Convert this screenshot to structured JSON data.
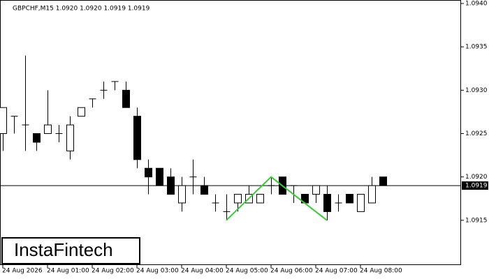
{
  "chart_data": {
    "type": "candlestick",
    "title": "GBPCHF,M15  1.0920 1.0920 1.0919 1.0919",
    "logo": "InstaFintech",
    "categories": [
      "24 Aug 2026",
      null,
      null,
      null,
      "24 Aug 01:00",
      null,
      null,
      null,
      "24 Aug 02:00",
      null,
      null,
      null,
      "24 Aug 03:00",
      null,
      null,
      null,
      "24 Aug 04:00",
      null,
      null,
      null,
      "24 Aug 05:00",
      null,
      null,
      null,
      "24 Aug 06:00",
      null,
      null,
      null,
      "24 Aug 07:00",
      null,
      null,
      null,
      "24 Aug 08:00",
      null,
      null
    ],
    "open": [
      1.0925,
      1.0927,
      1.0926,
      1.0925,
      1.0925,
      1.0925,
      1.0923,
      1.0927,
      1.0929,
      1.093,
      1.0931,
      1.093,
      1.0927,
      1.0921,
      1.0921,
      1.092,
      1.0917,
      1.092,
      1.0919,
      1.0917,
      1.0916,
      1.0917,
      1.0917,
      1.0917,
      1.0919,
      1.092,
      1.0919,
      1.0918,
      1.0918,
      1.0918,
      1.0917,
      1.0918,
      1.0916,
      1.0917,
      1.092
    ],
    "high": [
      1.0928,
      1.0927,
      1.0934,
      1.0925,
      1.093,
      1.0926,
      1.0927,
      1.0928,
      1.0929,
      1.0931,
      1.0931,
      1.0931,
      1.0928,
      1.0922,
      1.0921,
      1.0921,
      1.092,
      1.0922,
      1.092,
      1.0918,
      1.0918,
      1.0918,
      1.0919,
      1.0918,
      1.092,
      1.092,
      1.0919,
      1.0918,
      1.0919,
      1.0919,
      1.0918,
      1.0918,
      1.0918,
      1.092,
      1.092
    ],
    "low": [
      1.0923,
      1.0925,
      1.0923,
      1.0923,
      1.0925,
      1.0924,
      1.0922,
      1.0927,
      1.0928,
      1.0929,
      1.093,
      1.0928,
      1.0921,
      1.0918,
      1.0919,
      1.0918,
      1.0916,
      1.0918,
      1.0918,
      1.0916,
      1.0915,
      1.0916,
      1.0917,
      1.0917,
      1.0918,
      1.0918,
      1.0917,
      1.0917,
      1.0917,
      1.0915,
      1.0916,
      1.0917,
      1.0916,
      1.0917,
      1.0919
    ],
    "close": [
      1.0928,
      1.0927,
      1.0926,
      1.0924,
      1.0926,
      1.0925,
      1.0926,
      1.0928,
      1.0929,
      1.093,
      1.0931,
      1.0928,
      1.0922,
      1.092,
      1.0919,
      1.0918,
      1.0919,
      1.092,
      1.0918,
      1.0917,
      1.0916,
      1.0918,
      1.0918,
      1.0918,
      1.0919,
      1.0918,
      1.0919,
      1.0917,
      1.0919,
      1.0916,
      1.0917,
      1.0917,
      1.0918,
      1.0919,
      1.0919
    ],
    "up_color": "#ffffff",
    "down_color": "#000000",
    "current_price": 1.0919,
    "current_price_label": "1.0919",
    "pattern": {
      "color": "#33cc33",
      "x_index": [
        20,
        24,
        29
      ],
      "values": [
        1.0915,
        1.092,
        1.0915
      ]
    },
    "ylim": [
      1.091,
      1.094
    ],
    "yticks": [
      {
        "value": 1.094,
        "label": "1.0940"
      },
      1.0935,
      {
        "value": 1.093,
        "label": "1.0930"
      },
      1.0925,
      {
        "value": 1.092,
        "label": "1.0920"
      },
      1.0915
    ]
  }
}
